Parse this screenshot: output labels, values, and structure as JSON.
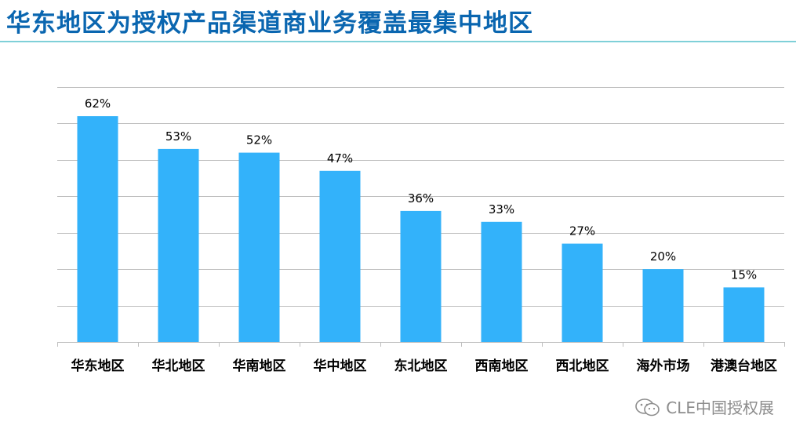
{
  "title": "华东地区为授权产品渠道商业务覆盖最集中地区",
  "watermark": {
    "text": "CLE中国授权展",
    "icon": "wechat-icon"
  },
  "colors": {
    "title": "#0a66b0",
    "bar": "#33b2fa",
    "grid": "#bfbfbf",
    "watermark": "#8c8c8c"
  },
  "chart_data": {
    "type": "bar",
    "title": "",
    "xlabel": "",
    "ylabel": "",
    "categories": [
      "华东地区",
      "华北地区",
      "华南地区",
      "华中地区",
      "东北地区",
      "西南地区",
      "西北地区",
      "海外市场",
      "港澳台地区"
    ],
    "values": [
      62,
      53,
      52,
      47,
      36,
      33,
      27,
      20,
      15
    ],
    "value_labels": [
      "62%",
      "53%",
      "52%",
      "47%",
      "36%",
      "33%",
      "27%",
      "20%",
      "15%"
    ],
    "unit": "%",
    "ylim": [
      0,
      70
    ],
    "grid": true,
    "y_tick_labels_shown": false,
    "legend": "none"
  }
}
